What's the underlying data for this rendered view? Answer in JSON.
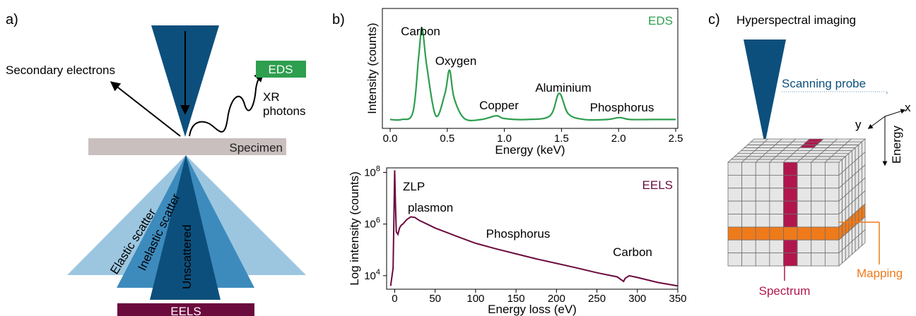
{
  "panel_a": {
    "label": "a)",
    "secondary_electrons": "Secondary electrons",
    "eds_badge": "EDS",
    "xr_line1": "XR",
    "xr_line2": "photons",
    "specimen": "Specimen",
    "elastic": "Elastic scatter",
    "inelastic": "Inelastic scatter",
    "unscattered": "Unscattered",
    "eels_badge": "EELS"
  },
  "panel_b": {
    "label": "b)"
  },
  "panel_c": {
    "label": "c)",
    "title": "Hyperspectral imaging",
    "scanning_probe": "Scanning probe",
    "axis_x": "x",
    "axis_y": "y",
    "axis_energy": "Energy",
    "spectrum": "Spectrum",
    "mapping": "Mapping"
  },
  "colors": {
    "probe": "#0d4f7c",
    "eds_green": "#2e9e4f",
    "eels_maroon": "#6b0a3d",
    "specimen": "#c9bfbf",
    "light_blue": "#9cc6e0",
    "mid_blue": "#3d8bbd",
    "dark_blue": "#0d4f7c",
    "spectrum_crimson": "#b0164d",
    "mapping_orange": "#ef7a1a"
  },
  "chart_data": [
    {
      "type": "line",
      "title": "",
      "series_label": "EDS",
      "xlabel": "Energy (keV)",
      "ylabel": "Intensity (counts)",
      "xlim": [
        0.0,
        2.5
      ],
      "xticks": [
        "0.0",
        "0.5",
        "1.0",
        "1.5",
        "2.0",
        "2.5"
      ],
      "x": [
        0.0,
        0.1,
        0.2,
        0.25,
        0.28,
        0.32,
        0.4,
        0.48,
        0.52,
        0.56,
        0.65,
        0.8,
        0.93,
        1.0,
        1.2,
        1.4,
        1.48,
        1.56,
        1.7,
        1.9,
        2.01,
        2.1,
        2.3,
        2.5
      ],
      "y": [
        2,
        2,
        10,
        70,
        100,
        60,
        6,
        30,
        55,
        25,
        3,
        2,
        6,
        3,
        2,
        6,
        30,
        8,
        2,
        2,
        4,
        2,
        2,
        2
      ],
      "annotations": [
        "Carbon",
        "Oxygen",
        "Copper",
        "Aluminium",
        "Phosphorus"
      ],
      "grid": false
    },
    {
      "type": "line",
      "title": "",
      "series_label": "EELS",
      "xlabel": "Energy loss (eV)",
      "ylabel": "Log intensity (counts)",
      "y_scale": "log",
      "xlim": [
        -10,
        350
      ],
      "ylim": [
        3000,
        150000000
      ],
      "xticks": [
        "0",
        "50",
        "100",
        "150",
        "200",
        "250",
        "300",
        "350"
      ],
      "yticks": [
        "10^8",
        "10^6",
        "10^4"
      ],
      "x": [
        -5,
        -2,
        0,
        1,
        2,
        4,
        6,
        8,
        10,
        15,
        20,
        25,
        30,
        40,
        50,
        75,
        100,
        125,
        150,
        175,
        200,
        225,
        250,
        275,
        283,
        285,
        290,
        300,
        325,
        350
      ],
      "y": [
        4000,
        20000,
        120000000,
        5000000,
        500000,
        400000,
        700000,
        900000,
        1000000,
        1500000,
        1900000,
        1800000,
        1400000,
        1000000,
        700000,
        350000,
        180000,
        110000,
        70000,
        45000,
        30000,
        20000,
        13000,
        9000,
        6000,
        8000,
        10000,
        8500,
        5500,
        4000
      ],
      "annotations": [
        "ZLP",
        "plasmon",
        "Phosphorus",
        "Carbon"
      ],
      "grid": false
    }
  ]
}
